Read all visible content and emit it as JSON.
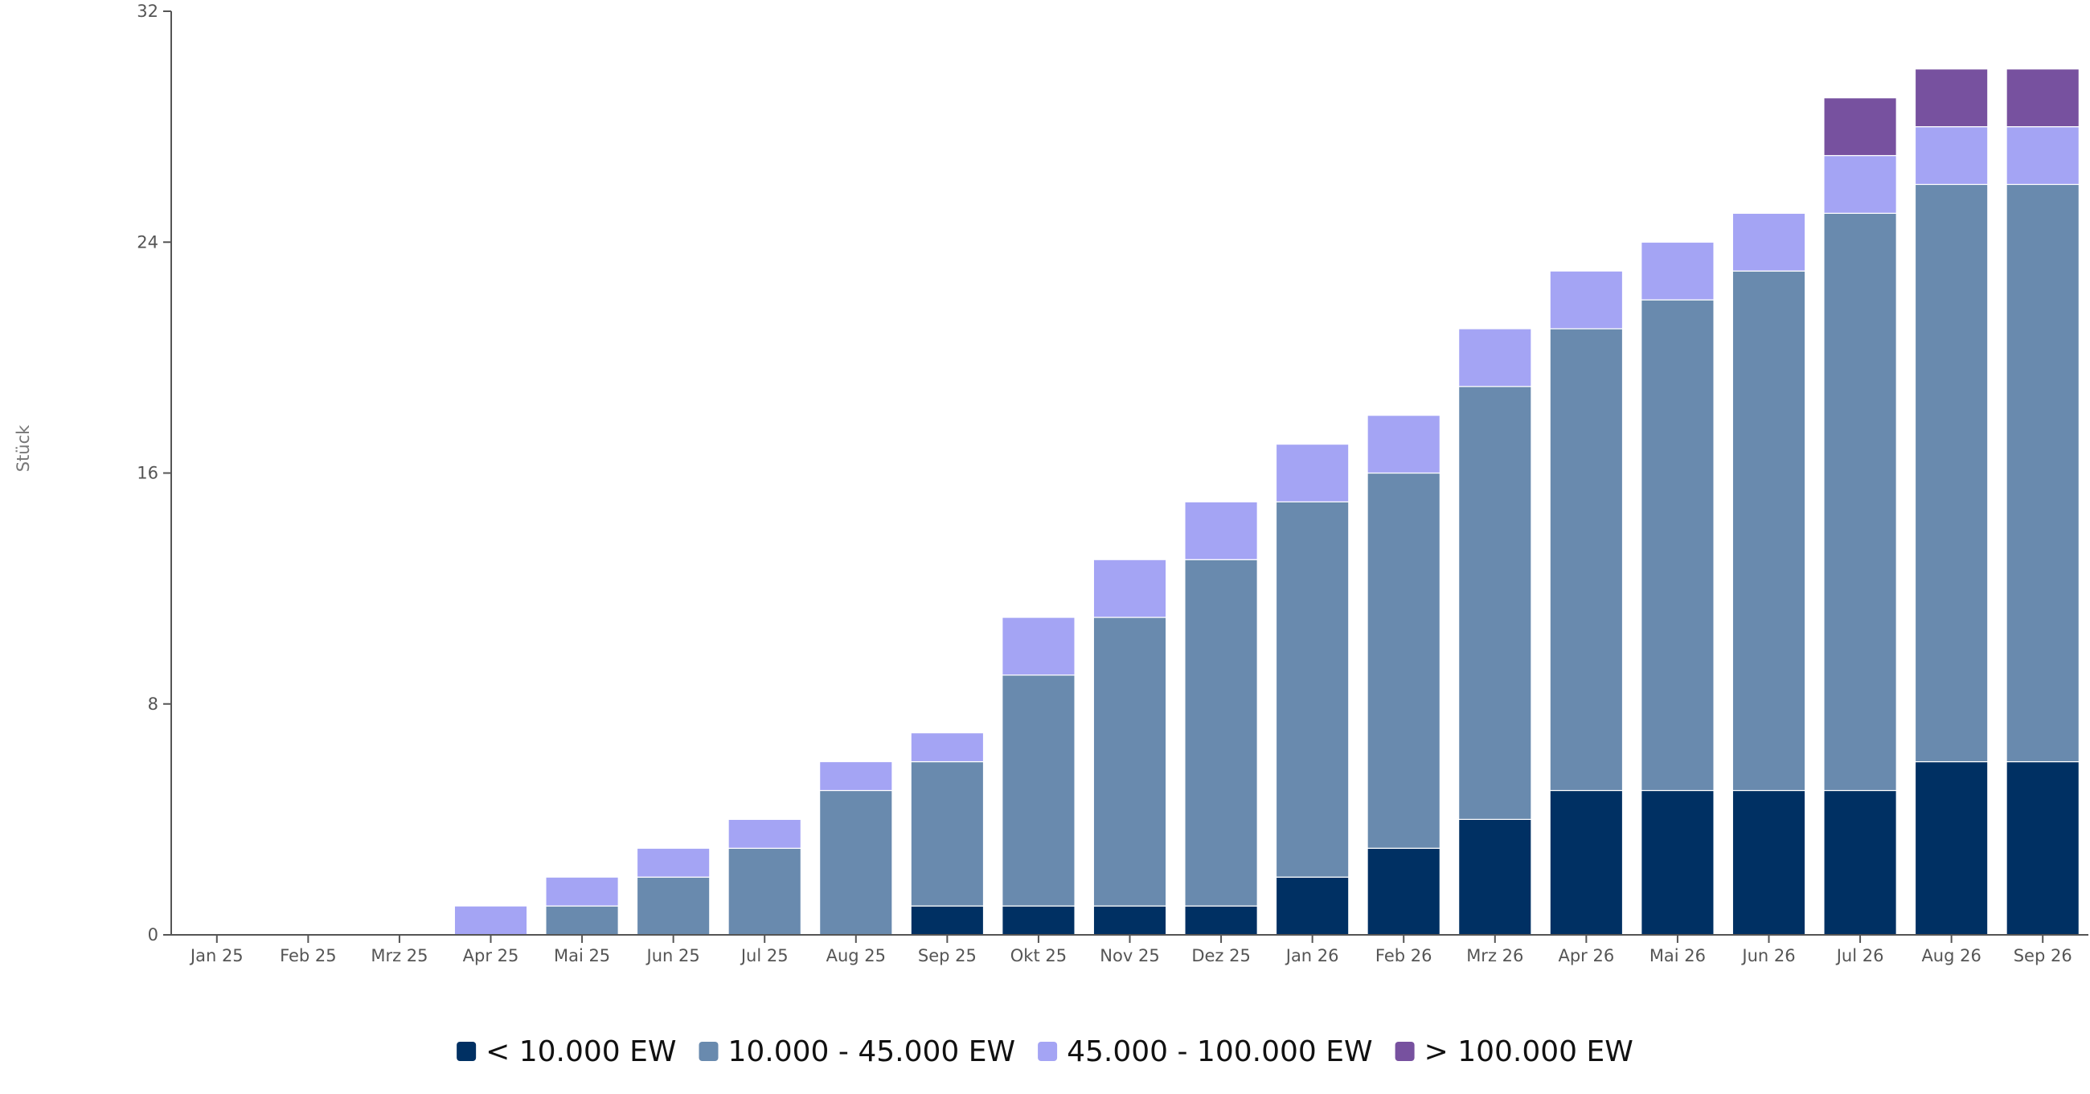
{
  "chart_data": {
    "type": "bar",
    "stacked": true,
    "title": "",
    "xlabel": "",
    "ylabel": "Stück",
    "ylim": [
      0,
      32
    ],
    "yticks": [
      0,
      8,
      16,
      24,
      32
    ],
    "grid": false,
    "legend_position": "bottom",
    "categories": [
      "Jan 25",
      "Feb 25",
      "Mrz 25",
      "Apr 25",
      "Mai 25",
      "Jun 25",
      "Jul 25",
      "Aug 25",
      "Sep 25",
      "Okt 25",
      "Nov 25",
      "Dez 25",
      "Jan 26",
      "Feb 26",
      "Mrz 26",
      "Apr 26",
      "Mai 26",
      "Jun 26",
      "Jul 26",
      "Aug 26",
      "Sep 26"
    ],
    "series": [
      {
        "name": "< 10.000 EW",
        "color": "#003063",
        "values": [
          0,
          0,
          0,
          0,
          0,
          0,
          0,
          0,
          1,
          1,
          1,
          1,
          2,
          3,
          4,
          5,
          5,
          5,
          5,
          6,
          6
        ]
      },
      {
        "name": "10.000 - 45.000 EW",
        "color": "#698aae",
        "values": [
          0,
          0,
          0,
          0,
          1,
          2,
          3,
          5,
          5,
          8,
          10,
          12,
          13,
          13,
          15,
          16,
          17,
          18,
          20,
          20,
          20
        ]
      },
      {
        "name": "45.000 - 100.000 EW",
        "color": "#a4a4f4",
        "values": [
          0,
          0,
          0,
          1,
          1,
          1,
          1,
          1,
          1,
          2,
          2,
          2,
          2,
          2,
          2,
          2,
          2,
          2,
          2,
          2,
          2
        ]
      },
      {
        "name": "> 100.000 EW",
        "color": "#77519f",
        "values": [
          0,
          0,
          0,
          0,
          0,
          0,
          0,
          0,
          0,
          0,
          0,
          0,
          0,
          0,
          0,
          0,
          0,
          0,
          2,
          2,
          2
        ]
      }
    ]
  }
}
